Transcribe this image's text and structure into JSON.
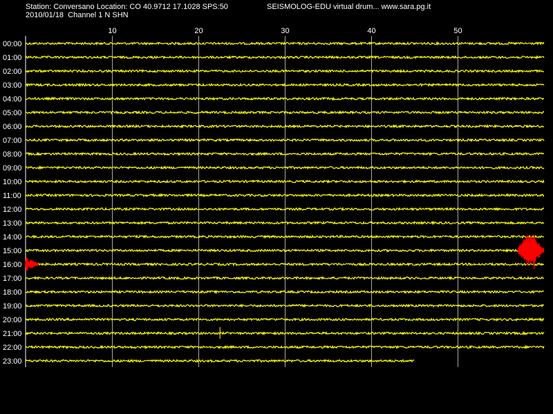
{
  "header": {
    "station_line": "Station: Conversano Location: CO 40.9712 17.1028 SPS:50",
    "brand_line": "SEISMOLOG-EDU virtual drum... www.sara.pg.it",
    "date_line": "2010/01/18  Channel 1 N SHN"
  },
  "minute_ticks": [
    "10",
    "20",
    "30",
    "40",
    "50"
  ],
  "hours": [
    "00:00",
    "01:00",
    "02:00",
    "03:00",
    "04:00",
    "05:00",
    "06:00",
    "07:00",
    "08:00",
    "09:00",
    "10:00",
    "11:00",
    "12:00",
    "13:00",
    "14:00",
    "15:00",
    "16:00",
    "17:00",
    "18:00",
    "19:00",
    "20:00",
    "21:00",
    "22:00",
    "23:00"
  ],
  "colors": {
    "background": "#000000",
    "trace": "#ffff00",
    "event": "#ff0000",
    "grid": "#ffffff",
    "text": "#ffffff"
  },
  "trace_minutes_recorded": 60,
  "last_hour_minutes_recorded": 45,
  "events": [
    {
      "hour_index": 15,
      "start_minute": 57,
      "end_minute": 60,
      "color": "red"
    },
    {
      "hour_index": 16,
      "start_minute": 0,
      "end_minute": 1.5,
      "color": "red"
    }
  ]
}
